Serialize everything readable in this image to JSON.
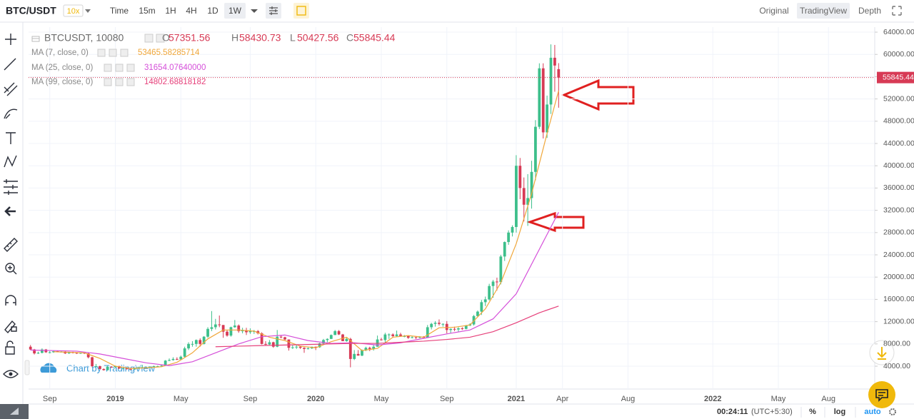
{
  "toolbar": {
    "symbol": "BTC/USDT",
    "leverage": "10x",
    "intervals": [
      "Time",
      "15m",
      "1H",
      "4H",
      "1D",
      "1W"
    ],
    "views": [
      "Original",
      "TradingView",
      "Depth"
    ]
  },
  "footer": {
    "clock": "00:24:11",
    "timezone": "(UTC+5:30)",
    "options": [
      "%",
      "log",
      "auto"
    ]
  },
  "watermark": "Chart by TradingView",
  "chart_data": {
    "type": "candlestick",
    "title": "BTCUSDT, 10080",
    "ohlc_labels": [
      "O",
      "H",
      "L",
      "C"
    ],
    "up_color": "#3dbf8b",
    "down_color": "#d73a55",
    "grid": true,
    "log": false,
    "xlim": [
      -0.5,
      219
    ],
    "ylim": [
      -100,
      64900
    ],
    "xticks": [
      {
        "value": 5,
        "label": "Sep"
      },
      {
        "value": 22,
        "label": "2019"
      },
      {
        "value": 39,
        "label": "May"
      },
      {
        "value": 57,
        "label": "Sep"
      },
      {
        "value": 74,
        "label": "2020"
      },
      {
        "value": 91,
        "label": "May"
      },
      {
        "value": 108,
        "label": "Sep"
      },
      {
        "value": 126,
        "label": "2021"
      },
      {
        "value": 138,
        "label": "Apr"
      },
      {
        "value": 155,
        "label": "Aug"
      },
      {
        "value": 177,
        "label": "2022"
      },
      {
        "value": 194,
        "label": "May"
      },
      {
        "value": 207,
        "label": "Aug"
      }
    ],
    "yticks": [
      {
        "value": 4000,
        "label": "4000.00"
      },
      {
        "value": 8000,
        "label": "8000.00"
      },
      {
        "value": 12000,
        "label": "12000.00"
      },
      {
        "value": 16000,
        "label": "16000.00"
      },
      {
        "value": 20000,
        "label": "20000.00"
      },
      {
        "value": 24000,
        "label": "24000.00"
      },
      {
        "value": 28000,
        "label": "28000.00"
      },
      {
        "value": 32000,
        "label": "32000.00"
      },
      {
        "value": 36000,
        "label": "36000.00"
      },
      {
        "value": 40000,
        "label": "40000.00"
      },
      {
        "value": 44000,
        "label": "44000.00"
      },
      {
        "value": 48000,
        "label": "48000.00"
      },
      {
        "value": 52000,
        "label": "52000.00"
      },
      {
        "value": 56000,
        "label": "56000.00"
      },
      {
        "value": 60000,
        "label": "60000.00"
      },
      {
        "value": 64000,
        "label": "64000.00"
      }
    ],
    "candles": [
      [
        7500,
        7800,
        6900,
        7000
      ],
      [
        7000,
        7100,
        6100,
        6300
      ],
      [
        6300,
        6600,
        6200,
        6400
      ],
      [
        6400,
        7200,
        6300,
        7000
      ],
      [
        7000,
        7100,
        6400,
        6500
      ],
      [
        6500,
        6700,
        6300,
        6500
      ],
      [
        6500,
        6800,
        6400,
        6700
      ],
      [
        6700,
        6800,
        6500,
        6600
      ],
      [
        6600,
        6700,
        6500,
        6600
      ],
      [
        6600,
        6700,
        6200,
        6300
      ],
      [
        6300,
        6600,
        6200,
        6500
      ],
      [
        6500,
        6600,
        6300,
        6400
      ],
      [
        6400,
        6500,
        6200,
        6300
      ],
      [
        6300,
        6500,
        6200,
        6400
      ],
      [
        6400,
        6500,
        6200,
        6300
      ],
      [
        6300,
        6400,
        5400,
        5600
      ],
      [
        5600,
        5700,
        3800,
        4000
      ],
      [
        4000,
        4400,
        3800,
        4000
      ],
      [
        4000,
        4100,
        3400,
        3500
      ],
      [
        3500,
        3600,
        3200,
        3300
      ],
      [
        3300,
        4100,
        3200,
        3900
      ],
      [
        3900,
        4000,
        3700,
        3800
      ],
      [
        3800,
        4100,
        3700,
        4000
      ],
      [
        4000,
        4100,
        3500,
        3600
      ],
      [
        3600,
        3700,
        3500,
        3600
      ],
      [
        3600,
        3700,
        3400,
        3500
      ],
      [
        3500,
        3600,
        3300,
        3400
      ],
      [
        3400,
        3700,
        3400,
        3600
      ],
      [
        3600,
        3900,
        3500,
        3800
      ],
      [
        3800,
        4200,
        3700,
        3800
      ],
      [
        3800,
        3900,
        3700,
        3800
      ],
      [
        3800,
        4000,
        3800,
        3900
      ],
      [
        3900,
        4100,
        3800,
        4000
      ],
      [
        4000,
        4100,
        3900,
        4000
      ],
      [
        4000,
        4200,
        3900,
        4100
      ],
      [
        4100,
        5100,
        4100,
        5000
      ],
      [
        5000,
        5400,
        4900,
        5100
      ],
      [
        5100,
        5600,
        5000,
        5300
      ],
      [
        5300,
        5600,
        5100,
        5200
      ],
      [
        5200,
        5900,
        5200,
        5700
      ],
      [
        5700,
        7500,
        5600,
        7200
      ],
      [
        7200,
        8300,
        6900,
        8000
      ],
      [
        8000,
        8500,
        7500,
        8000
      ],
      [
        8000,
        8800,
        7500,
        8700
      ],
      [
        8700,
        9000,
        7500,
        8000
      ],
      [
        8000,
        9400,
        7900,
        9300
      ],
      [
        9300,
        11000,
        9100,
        10700
      ],
      [
        10700,
        13900,
        10300,
        11000
      ],
      [
        11000,
        12500,
        10600,
        11500
      ],
      [
        11500,
        13100,
        11000,
        11400
      ],
      [
        11400,
        11400,
        9100,
        10200
      ],
      [
        10200,
        10500,
        9300,
        9500
      ],
      [
        9500,
        11100,
        9300,
        11000
      ],
      [
        11000,
        12300,
        10900,
        11300
      ],
      [
        11300,
        11500,
        10000,
        10300
      ],
      [
        10300,
        10900,
        9900,
        10400
      ],
      [
        10400,
        10900,
        9600,
        10100
      ],
      [
        10100,
        10800,
        9800,
        10300
      ],
      [
        10300,
        10500,
        9800,
        10300
      ],
      [
        10300,
        10500,
        9700,
        9900
      ],
      [
        9900,
        10100,
        7900,
        8000
      ],
      [
        8000,
        8500,
        7700,
        7900
      ],
      [
        7900,
        8700,
        7800,
        8300
      ],
      [
        8300,
        8400,
        7300,
        7500
      ],
      [
        7500,
        10500,
        7400,
        9300
      ],
      [
        9300,
        9600,
        9000,
        9200
      ],
      [
        9200,
        9300,
        8700,
        8800
      ],
      [
        8800,
        8800,
        6800,
        7300
      ],
      [
        7300,
        7800,
        7100,
        7400
      ],
      [
        7400,
        7800,
        7100,
        7500
      ],
      [
        7500,
        7600,
        7100,
        7300
      ],
      [
        7300,
        7400,
        6400,
        7100
      ],
      [
        7100,
        7500,
        7000,
        7200
      ],
      [
        7200,
        7500,
        7100,
        7500
      ],
      [
        7500,
        7500,
        6900,
        7400
      ],
      [
        7400,
        8200,
        7300,
        8100
      ],
      [
        8100,
        8900,
        8000,
        8700
      ],
      [
        8700,
        9000,
        8300,
        8900
      ],
      [
        8900,
        9700,
        8900,
        9600
      ],
      [
        9600,
        10500,
        9600,
        10300
      ],
      [
        10300,
        10500,
        9600,
        9700
      ],
      [
        9700,
        9800,
        8500,
        8500
      ],
      [
        8500,
        9200,
        8400,
        8900
      ],
      [
        8900,
        9100,
        3800,
        5300
      ],
      [
        5300,
        6900,
        5100,
        6200
      ],
      [
        6200,
        6900,
        5900,
        5900
      ],
      [
        5900,
        7000,
        5800,
        6900
      ],
      [
        6900,
        7500,
        6700,
        7300
      ],
      [
        7300,
        7500,
        6700,
        7100
      ],
      [
        7100,
        7800,
        6800,
        7500
      ],
      [
        7500,
        9500,
        7500,
        8800
      ],
      [
        8800,
        9100,
        8600,
        8700
      ],
      [
        8700,
        10000,
        8100,
        9700
      ],
      [
        9700,
        9900,
        8900,
        9700
      ],
      [
        9700,
        9900,
        9100,
        9400
      ],
      [
        9400,
        10400,
        9300,
        9700
      ],
      [
        9700,
        10000,
        9300,
        9400
      ],
      [
        9400,
        9600,
        9200,
        9400
      ],
      [
        9400,
        9500,
        8900,
        9100
      ],
      [
        9100,
        9400,
        9000,
        9200
      ],
      [
        9200,
        9300,
        8900,
        9100
      ],
      [
        9100,
        9400,
        9000,
        9300
      ],
      [
        9300,
        9400,
        9000,
        9100
      ],
      [
        9100,
        11400,
        9100,
        11000
      ],
      [
        11000,
        11800,
        10600,
        11600
      ],
      [
        11600,
        12100,
        11100,
        11800
      ],
      [
        11800,
        12400,
        11300,
        11600
      ],
      [
        11600,
        11700,
        11100,
        11600
      ],
      [
        11600,
        12100,
        9900,
        10500
      ],
      [
        10500,
        10800,
        9900,
        10700
      ],
      [
        10700,
        11100,
        10300,
        10600
      ],
      [
        10600,
        11000,
        10200,
        10800
      ],
      [
        10800,
        11000,
        10500,
        10700
      ],
      [
        10700,
        11400,
        10600,
        11300
      ],
      [
        11300,
        11700,
        11200,
        11500
      ],
      [
        11500,
        13200,
        11300,
        13000
      ],
      [
        13000,
        14000,
        12800,
        13800
      ],
      [
        13800,
        15900,
        13200,
        15500
      ],
      [
        15500,
        16500,
        14800,
        16000
      ],
      [
        16000,
        18800,
        15800,
        18400
      ],
      [
        18400,
        19500,
        16300,
        19200
      ],
      [
        19200,
        19900,
        17600,
        19100
      ],
      [
        19100,
        24000,
        18700,
        23700
      ],
      [
        23700,
        26400,
        22900,
        26300
      ],
      [
        26300,
        28400,
        25800,
        28000
      ],
      [
        28000,
        29300,
        27300,
        29000
      ],
      [
        29000,
        41900,
        28000,
        40000
      ],
      [
        40000,
        41400,
        34000,
        36000
      ],
      [
        36000,
        37900,
        30000,
        33000
      ],
      [
        33000,
        38500,
        29200,
        34200
      ],
      [
        34200,
        40900,
        32300,
        38900
      ],
      [
        38900,
        48200,
        37400,
        47000
      ],
      [
        47000,
        58400,
        46600,
        57500
      ],
      [
        57500,
        58400,
        44900,
        46000
      ],
      [
        46000,
        52600,
        45000,
        51000
      ],
      [
        51000,
        61800,
        49300,
        59400
      ],
      [
        59400,
        61700,
        53300,
        58000
      ],
      [
        57351.56,
        58430.73,
        50427.56,
        55845.44
      ]
    ],
    "series": [
      {
        "name": "MA (7, close, 0)",
        "color": "#f0a73a",
        "last_value": "53465.58285714",
        "x": [
          6,
          10,
          14,
          18,
          22,
          26,
          30,
          34,
          38,
          42,
          46,
          50,
          54,
          58,
          62,
          66,
          70,
          74,
          78,
          82,
          86,
          90,
          94,
          98,
          102,
          106,
          110,
          114,
          118,
          122,
          126,
          130,
          134,
          137
        ],
        "values": [
          6600,
          6500,
          6400,
          5400,
          4000,
          3600,
          3700,
          3900,
          4700,
          6400,
          8900,
          10500,
          10500,
          10300,
          9200,
          8600,
          7600,
          7300,
          8400,
          9200,
          6800,
          7200,
          9200,
          9500,
          9200,
          10900,
          11000,
          11400,
          14300,
          19000,
          26000,
          35000,
          45800,
          53465.58285714
        ]
      },
      {
        "name": "MA (25, close, 0)",
        "color": "#d54fd9",
        "last_value": "31654.07640000",
        "x": [
          0,
          6,
          12,
          18,
          24,
          30,
          36,
          42,
          48,
          54,
          60,
          66,
          72,
          78,
          84,
          90,
          96,
          102,
          108,
          114,
          120,
          126,
          132,
          137
        ],
        "values": [
          6900,
          6800,
          6700,
          6200,
          5400,
          4600,
          4100,
          4800,
          6400,
          8000,
          9300,
          9600,
          8600,
          8100,
          8200,
          7800,
          8200,
          9000,
          9800,
          10500,
          12500,
          17000,
          25000,
          31654.0764
        ]
      },
      {
        "name": "MA (99, close, 0)",
        "color": "#e6407a",
        "last_value": "14802.68818182",
        "x": [
          48,
          54,
          60,
          66,
          72,
          78,
          84,
          90,
          96,
          102,
          108,
          114,
          120,
          126,
          132,
          137
        ],
        "values": [
          7500,
          7600,
          7700,
          7800,
          7900,
          8000,
          8100,
          8100,
          8300,
          8500,
          8800,
          9200,
          10200,
          11800,
          13600,
          14802.68818182
        ]
      }
    ]
  }
}
